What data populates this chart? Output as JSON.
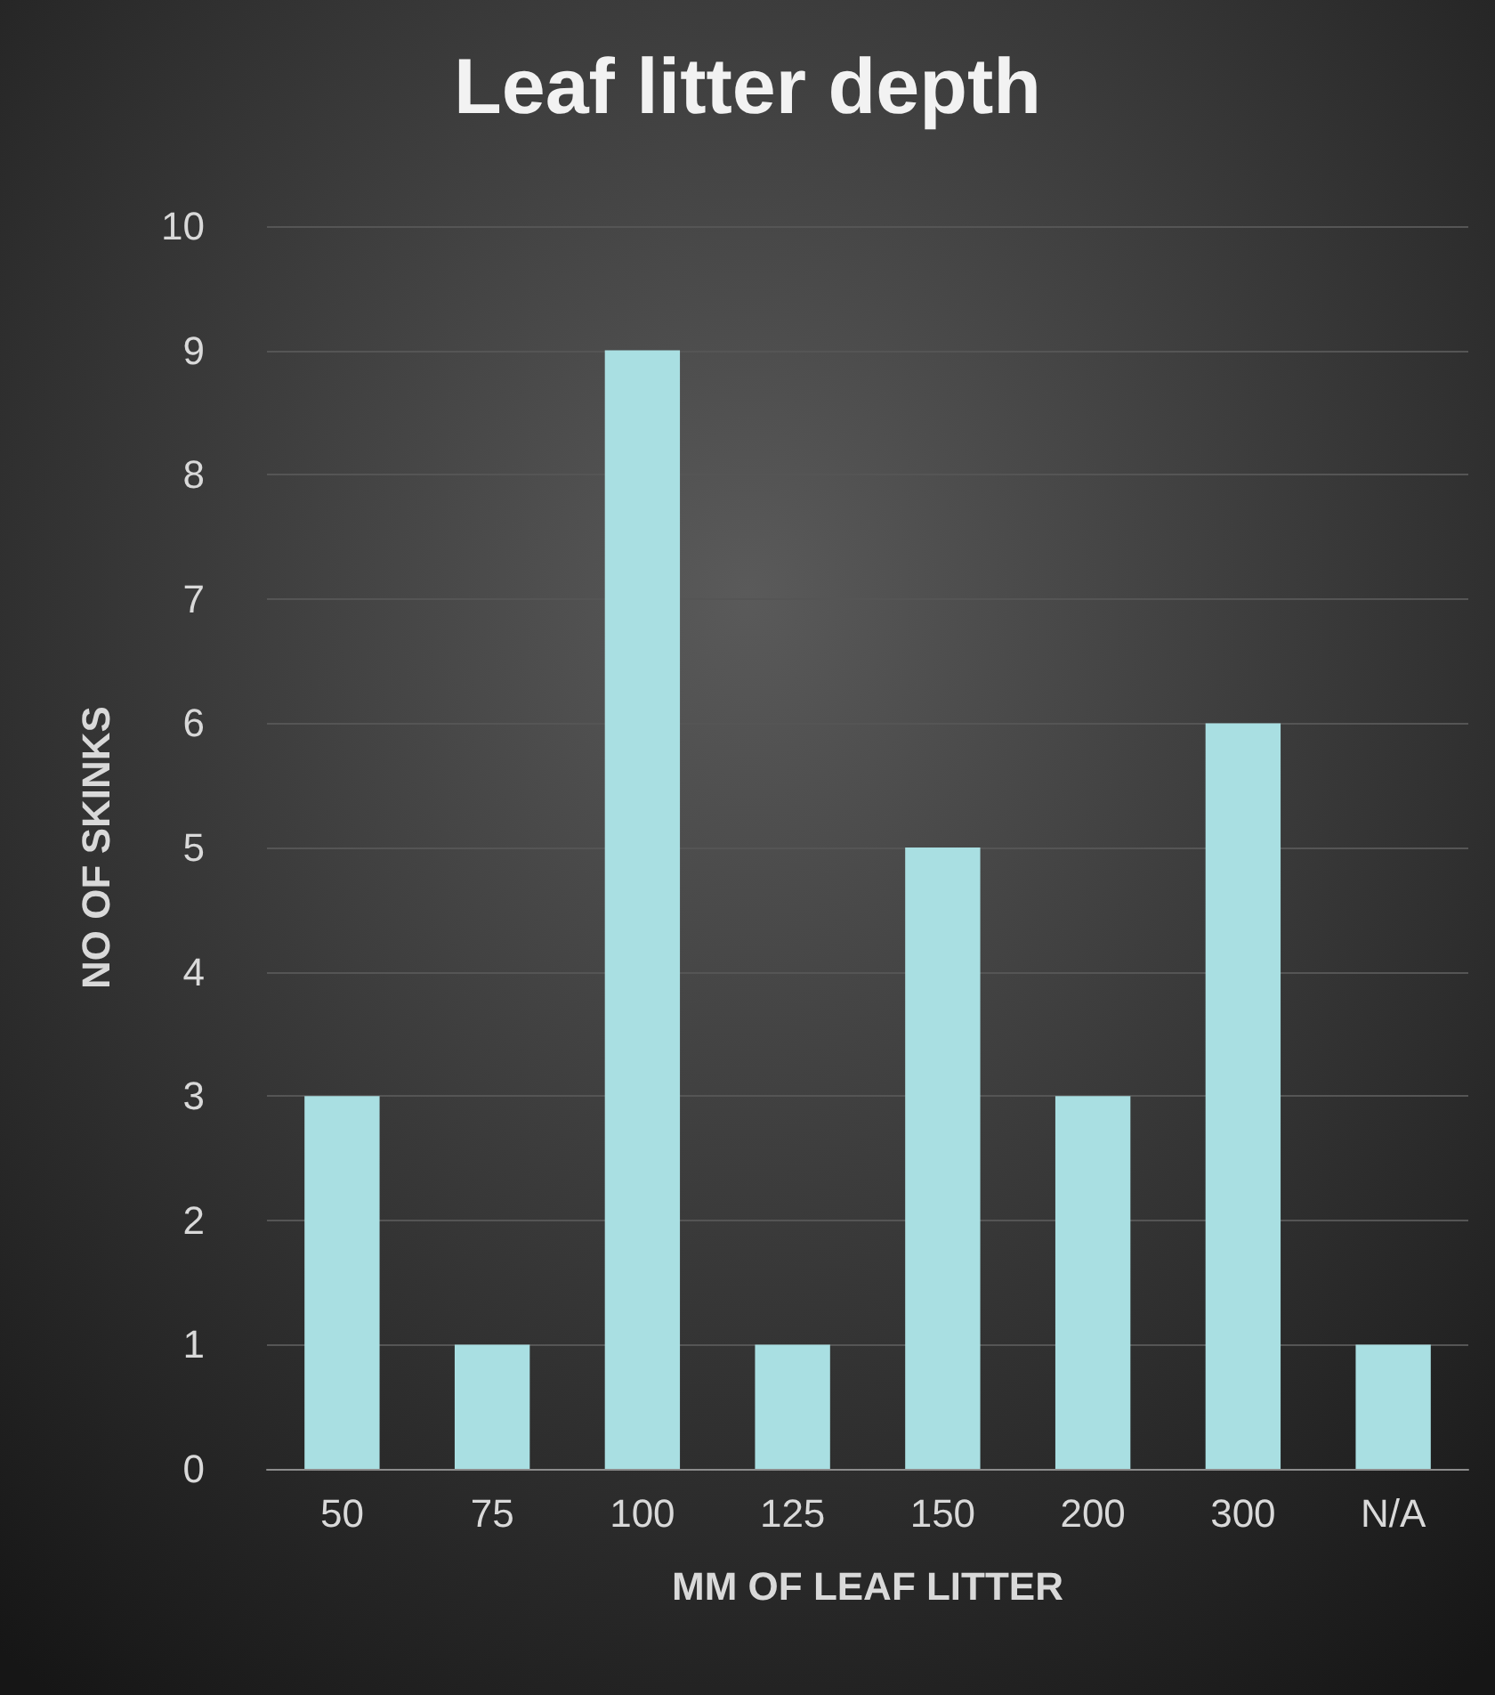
{
  "chart_data": {
    "type": "bar",
    "title": "Leaf litter depth",
    "xlabel": "MM OF LEAF LITTER",
    "ylabel": "NO OF SKINKS",
    "categories": [
      "50",
      "75",
      "100",
      "125",
      "150",
      "200",
      "300",
      "N/A"
    ],
    "values": [
      3,
      1,
      9,
      1,
      5,
      3,
      6,
      1
    ],
    "color": "#a9dfe2",
    "ylim": [
      0,
      10
    ],
    "yticks": [
      0,
      1,
      2,
      3,
      4,
      5,
      6,
      7,
      8,
      9,
      10
    ],
    "grid": "y"
  }
}
